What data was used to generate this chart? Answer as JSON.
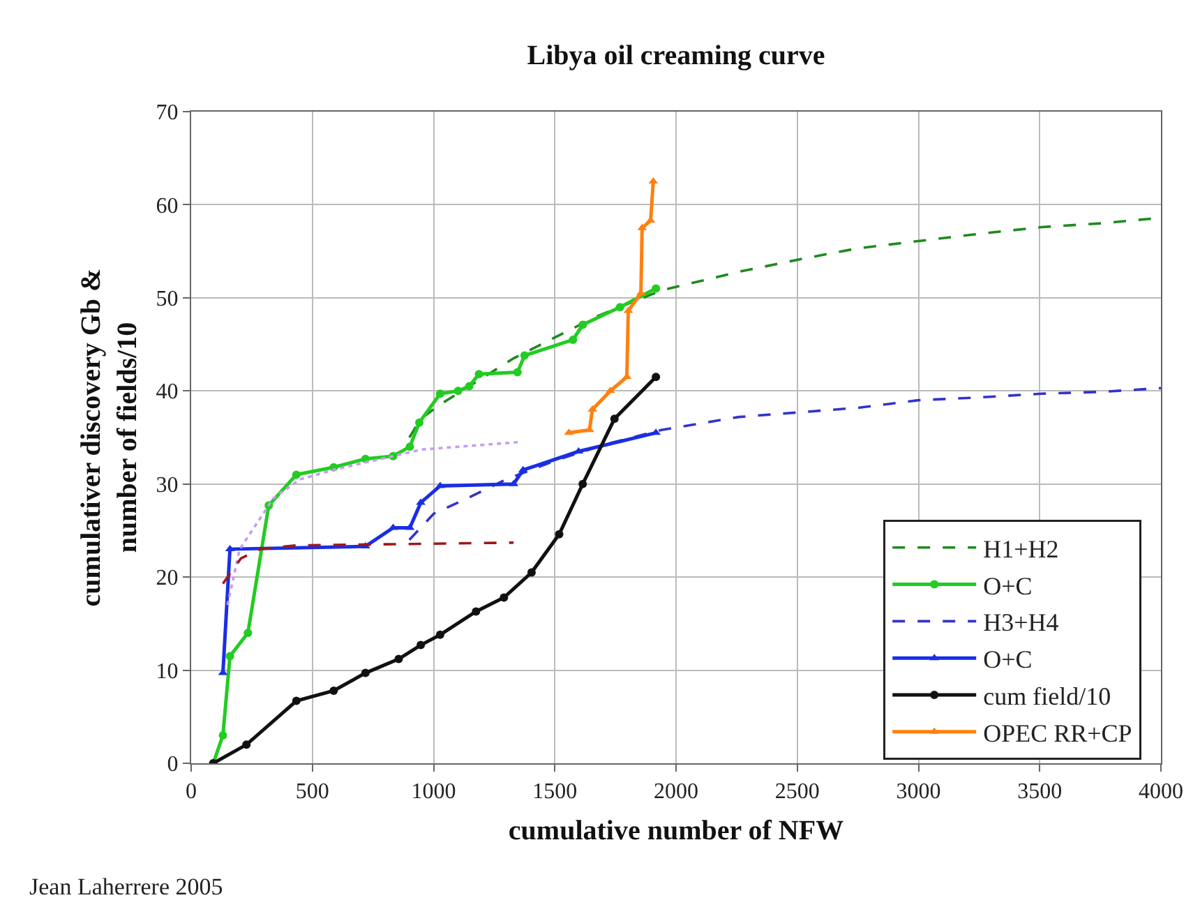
{
  "chart_data": {
    "type": "line",
    "title": "Libya oil creaming curve",
    "xlabel": "cumulative number of NFW",
    "ylabel": "cumulativer discovery Gb &\nnumber of fields/10",
    "xlim": [
      0,
      4000
    ],
    "xticks": [
      0,
      500,
      1000,
      1500,
      2000,
      2500,
      3000,
      3500,
      4000
    ],
    "ylim": [
      0,
      70
    ],
    "yticks": [
      0,
      10,
      20,
      30,
      40,
      50,
      60,
      70
    ],
    "grid": true,
    "legend": "bottom right",
    "annotations": [
      "Jean Laherrere 2005"
    ],
    "series": [
      {
        "name": "H1+H2",
        "color": "#1e8a1e",
        "line_style": "dashed",
        "marker": "none",
        "x": [
          900,
          947,
          1025,
          1330,
          1672,
          1940,
          2260,
          2503,
          2745,
          3000,
          3258,
          3509,
          3755,
          4000
        ],
        "values": [
          35,
          37,
          38.5,
          43.5,
          48,
          50.8,
          52.8,
          54.1,
          55.3,
          56.1,
          56.9,
          57.6,
          58.0,
          58.6
        ]
      },
      {
        "name": "O+C",
        "color": "#22cc22",
        "line_style": "solid",
        "marker": "circle",
        "x": [
          91,
          131,
          160,
          234,
          320,
          434,
          588,
          719,
          833,
          902,
          941,
          1027,
          1101,
          1147,
          1187,
          1346,
          1375,
          1575,
          1615,
          1769,
          1917
        ],
        "values": [
          0,
          3,
          11.5,
          14,
          27.7,
          31,
          31.8,
          32.7,
          33,
          34,
          36.6,
          39.7,
          40,
          40.5,
          41.8,
          42,
          43.8,
          45.5,
          47.1,
          49,
          51
        ]
      },
      {
        "name": "H3+H4",
        "color": "#3333cc",
        "line_style": "dashed",
        "marker": "none",
        "x": [
          900,
          1000,
          1150,
          1300,
          1500,
          1700,
          1940,
          2260,
          2756,
          3000,
          3250,
          3509,
          3755,
          4000
        ],
        "values": [
          24,
          26.8,
          28.6,
          30.5,
          32.5,
          34.2,
          35.8,
          37.2,
          38.2,
          39.0,
          39.3,
          39.7,
          39.9,
          40.3
        ]
      },
      {
        "name": "O+C",
        "color": "#1a2ee6",
        "line_style": "solid",
        "marker": "triangle",
        "x": [
          131,
          160,
          719,
          833,
          902,
          947,
          1027,
          1330,
          1369,
          1598,
          1917
        ],
        "values": [
          9.7,
          23,
          23.3,
          25.3,
          25.3,
          28,
          29.8,
          30,
          31.5,
          33.5,
          35.5
        ]
      },
      {
        "name": "cum field/10",
        "color": "#111111",
        "line_style": "solid",
        "marker": "circle",
        "x": [
          91,
          228,
          434,
          588,
          719,
          856,
          947,
          1027,
          1175,
          1290,
          1404,
          1518,
          1615,
          1746,
          1917
        ],
        "values": [
          0,
          2,
          6.7,
          7.8,
          9.7,
          11.2,
          12.7,
          13.8,
          16.3,
          17.8,
          20.5,
          24.6,
          30,
          37,
          41.5
        ]
      },
      {
        "name": "OPEC RR+CP",
        "color": "#ff8010",
        "line_style": "solid",
        "marker": "triangle",
        "x": [
          1558,
          1643,
          1655,
          1729,
          1797,
          1803,
          1855,
          1860,
          1895,
          1906
        ],
        "values": [
          35.5,
          35.8,
          38,
          40,
          41.5,
          48.6,
          50.5,
          57.5,
          58.3,
          62.5
        ]
      },
      {
        "color": "#c89cf0",
        "line_style": "dotted",
        "marker": "none",
        "x": [
          150,
          200,
          340,
          450,
          600,
          800,
          950,
          1350
        ],
        "values": [
          17,
          23,
          28.5,
          30.5,
          31.6,
          32.8,
          33.7,
          34.5
        ]
      },
      {
        "color": "#a01818",
        "line_style": "dashed",
        "marker": "none",
        "x": [
          131,
          205,
          285,
          430,
          1330
        ],
        "values": [
          19.3,
          22,
          23,
          23.4,
          23.7
        ]
      }
    ]
  }
}
